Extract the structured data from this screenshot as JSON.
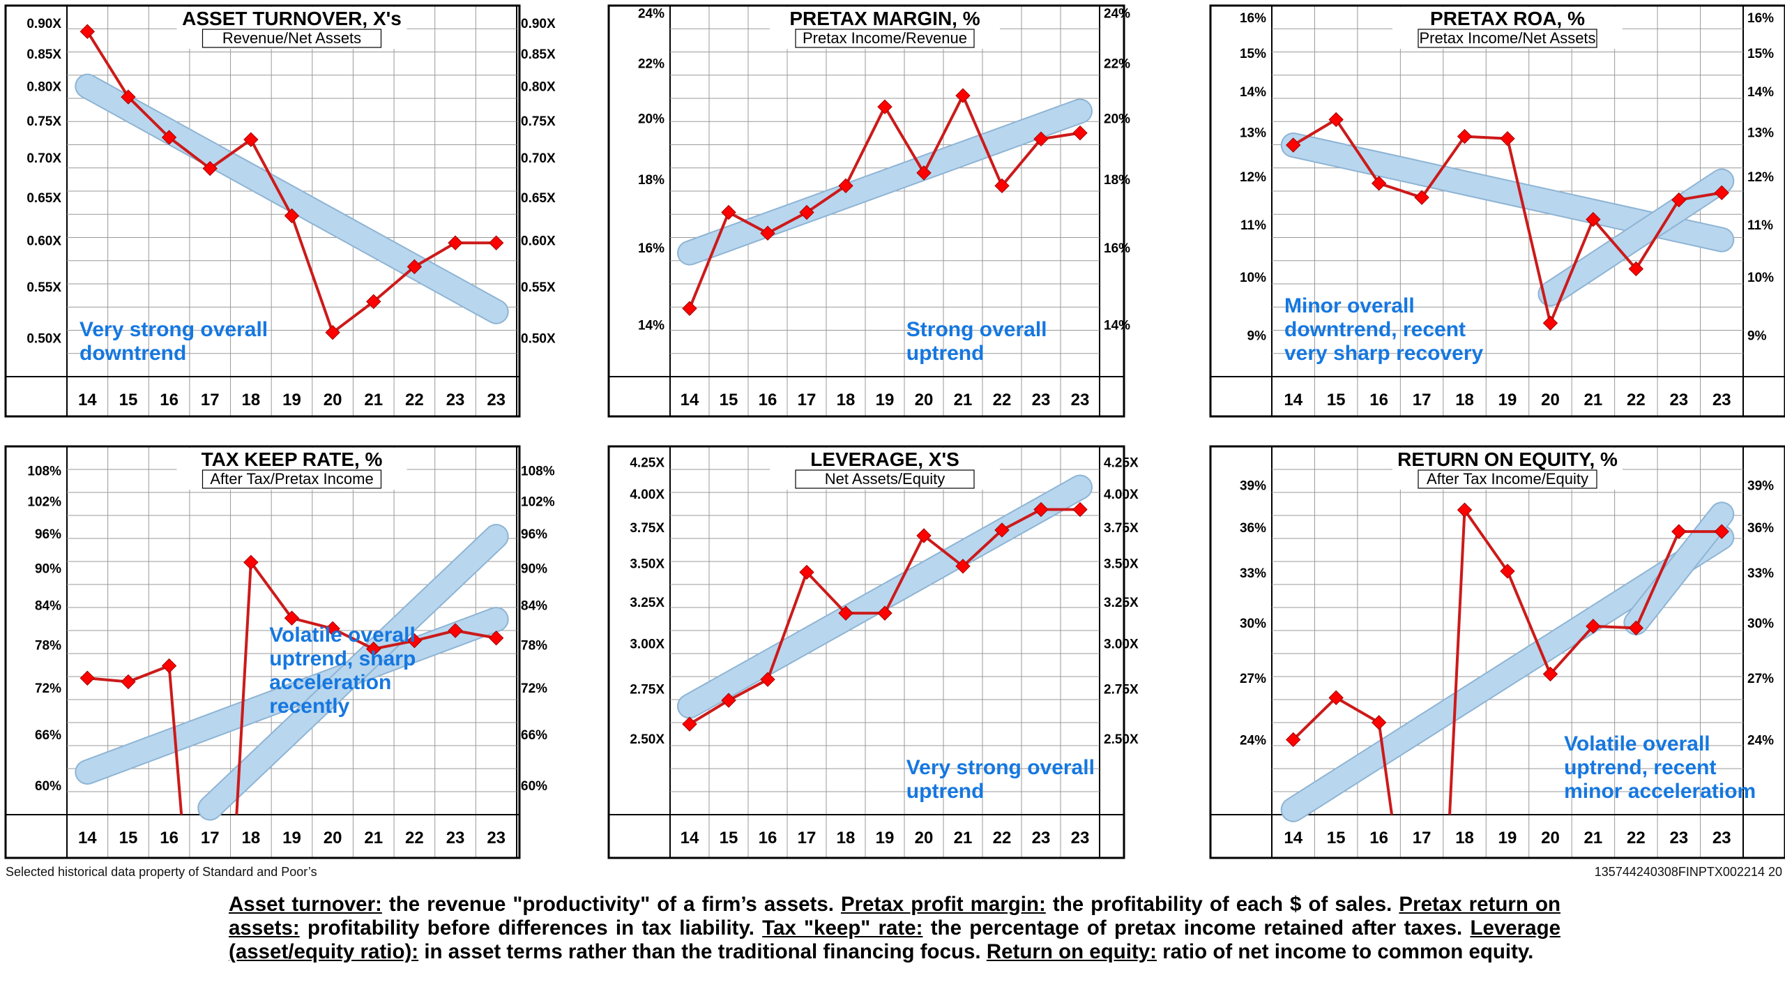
{
  "colors": {
    "trend_band": "#b8d6ee",
    "trend_inner": "#d6ecc0",
    "series": "#cc1a1a",
    "marker": "#ff0000",
    "annotation": "#1577e0",
    "grid": "#999999",
    "frame": "#000000"
  },
  "charts": [
    {
      "id": "asset-turnover",
      "title": "ASSET TURNOVER, X's",
      "subtitle": "Revenue/Net Assets",
      "annotation": [
        "Very strong overall",
        "downtrend"
      ],
      "annotation_pos": "bottom-left",
      "chart_data": {
        "type": "line",
        "scale": "log",
        "ylim": [
          0.465,
          0.93
        ],
        "yticks": [
          0.5,
          0.55,
          0.6,
          0.65,
          0.7,
          0.75,
          0.8,
          0.85,
          0.9
        ],
        "ytick_labels": [
          "0.50X",
          "0.55X",
          "0.60X",
          "0.65X",
          "0.70X",
          "0.75X",
          "0.80X",
          "0.85X",
          "0.90X"
        ],
        "categories": [
          "14",
          "15",
          "16",
          "17",
          "18",
          "19",
          "20",
          "21",
          "22",
          "23",
          "23"
        ],
        "values": [
          0.886,
          0.784,
          0.727,
          0.686,
          0.724,
          0.628,
          0.505,
          0.535,
          0.571,
          0.597,
          0.597
        ],
        "trends": [
          {
            "from": [
              0,
              0.8
            ],
            "to": [
              10,
              0.525
            ]
          }
        ]
      }
    },
    {
      "id": "pretax-margin",
      "title": "PRETAX MARGIN, %",
      "subtitle": "Pretax Income/Revenue",
      "annotation": [
        "Strong overall",
        "uptrend"
      ],
      "annotation_pos": "bottom-center",
      "chart_data": {
        "type": "line",
        "scale": "log",
        "ylim": [
          12.8,
          24.3
        ],
        "yticks": [
          14,
          16,
          18,
          20,
          22,
          24
        ],
        "ytick_labels": [
          "14%",
          "16%",
          "18%",
          "20%",
          "22%",
          "24%"
        ],
        "categories": [
          "14",
          "15",
          "16",
          "17",
          "18",
          "19",
          "20",
          "21",
          "22",
          "23",
          "23"
        ],
        "values": [
          14.4,
          17.0,
          16.4,
          17.0,
          17.8,
          20.4,
          18.2,
          20.8,
          17.8,
          19.3,
          19.5
        ],
        "trends": [
          {
            "from": [
              0,
              15.85
            ],
            "to": [
              10,
              20.25
            ]
          }
        ]
      }
    },
    {
      "id": "pretax-roa",
      "title": "PRETAX ROA, %",
      "subtitle": "Pretax Income/Net Assets",
      "annotation": [
        "Minor overall",
        "downtrend, recent",
        "very sharp recovery"
      ],
      "annotation_pos": "bottom-left",
      "chart_data": {
        "type": "line",
        "scale": "log",
        "ylim": [
          8.35,
          16.35
        ],
        "yticks": [
          9,
          10,
          11,
          12,
          13,
          14,
          15,
          16
        ],
        "ytick_labels": [
          "9%",
          "10%",
          "11%",
          "12%",
          "13%",
          "14%",
          "15%",
          "16%"
        ],
        "categories": [
          "14",
          "15",
          "16",
          "17",
          "18",
          "19",
          "20",
          "21",
          "22",
          "23",
          "23"
        ],
        "values": [
          12.7,
          13.3,
          11.85,
          11.55,
          12.9,
          12.85,
          9.2,
          11.1,
          10.15,
          11.5,
          11.65
        ],
        "trends": [
          {
            "from": [
              0,
              12.7
            ],
            "to": [
              10,
              10.7
            ]
          },
          {
            "from": [
              6,
              9.7
            ],
            "to": [
              10,
              11.9
            ]
          }
        ]
      }
    },
    {
      "id": "tax-keep-rate",
      "title": "TAX KEEP RATE, %",
      "subtitle": "After Tax/Pretax Income",
      "annotation": [
        "Volatile overall",
        "uptrend, sharp",
        "acceleration",
        "recently"
      ],
      "annotation_pos": "center",
      "chart_data": {
        "type": "line",
        "scale": "log",
        "ylim": [
          56.8,
          113
        ],
        "yticks": [
          60,
          66,
          72,
          78,
          84,
          90,
          96,
          102,
          108
        ],
        "ytick_labels": [
          "60%",
          "66%",
          "72%",
          "78%",
          "84%",
          "90%",
          "96%",
          "102%",
          "108%"
        ],
        "categories": [
          "14",
          "15",
          "16",
          "17",
          "18",
          "19",
          "20",
          "21",
          "22",
          "23",
          "23"
        ],
        "values": [
          73.3,
          72.8,
          75.0,
          null,
          91.0,
          82.0,
          80.4,
          77.4,
          78.6,
          80.1,
          79.0
        ],
        "offscale_drops": [
          2,
          4
        ],
        "trends": [
          {
            "from": [
              0,
              61.5
            ],
            "to": [
              10,
              81.8
            ]
          },
          {
            "from": [
              3,
              57.5
            ],
            "to": [
              10,
              95.5
            ]
          }
        ]
      }
    },
    {
      "id": "leverage",
      "title": "LEVERAGE, X'S",
      "subtitle": "Net Assets/Equity",
      "annotation": [
        "Very strong overall",
        "uptrend"
      ],
      "annotation_pos": "bottom-center",
      "chart_data": {
        "type": "line",
        "scale": "log",
        "ylim": [
          2.16,
          4.38
        ],
        "yticks": [
          2.5,
          2.75,
          3.0,
          3.25,
          3.5,
          3.75,
          4.0,
          4.25
        ],
        "ytick_labels": [
          "2.50X",
          "2.75X",
          "3.00X",
          "3.25X",
          "3.50X",
          "3.75X",
          "4.00X",
          "4.25X"
        ],
        "categories": [
          "14",
          "15",
          "16",
          "17",
          "18",
          "19",
          "20",
          "21",
          "22",
          "23",
          "23"
        ],
        "values": [
          2.57,
          2.69,
          2.8,
          3.44,
          3.18,
          3.18,
          3.69,
          3.48,
          3.73,
          3.88,
          3.88
        ],
        "trends": [
          {
            "from": [
              0,
              2.66
            ],
            "to": [
              10,
              4.05
            ]
          }
        ]
      }
    },
    {
      "id": "return-on-equity",
      "title": "RETURN ON EQUITY, %",
      "subtitle": "After Tax Income/Equity",
      "annotation": [
        "Volatile overall",
        "uptrend, recent",
        "minor acceleratiom"
      ],
      "annotation_pos": "bottom-right",
      "chart_data": {
        "type": "line",
        "scale": "log",
        "ylim": [
          20.8,
          42.0
        ],
        "yticks": [
          24,
          27,
          30,
          33,
          36,
          39
        ],
        "ytick_labels": [
          "24%",
          "27%",
          "30%",
          "33%",
          "36%",
          "39%"
        ],
        "categories": [
          "14",
          "15",
          "16",
          "17",
          "18",
          "19",
          "20",
          "21",
          "22",
          "23",
          "23"
        ],
        "values": [
          24.0,
          26.0,
          24.8,
          null,
          37.2,
          33.1,
          27.2,
          29.8,
          29.7,
          35.7,
          35.7
        ],
        "offscale_drops": [
          2,
          4
        ],
        "trends": [
          {
            "from": [
              0,
              21.0
            ],
            "to": [
              10,
              35.3
            ]
          },
          {
            "from": [
              8,
              30.0
            ],
            "to": [
              10,
              36.9
            ]
          }
        ]
      }
    }
  ],
  "footer": {
    "source": "Selected historical data property of Standard and Poor’s",
    "code": "135744240308FINPTX002214  20"
  },
  "definitions": {
    "t1": "Asset turnover:",
    "d1": " the revenue \"productivity\" of a firm’s assets. ",
    "t2": "Pretax profit margin:",
    "d2": " the profitability of each $ of sales. ",
    "t3": "Pretax return on assets:",
    "d3": " profitability before differences in tax liability. ",
    "t4": "Tax \"keep\" rate:",
    "d4": " the percentage of pretax income retained after taxes. ",
    "t5": "Leverage (asset/equity ratio):",
    "d5": " in asset terms rather than the traditional financing focus. ",
    "t6": "Return on equity:",
    "d6": " ratio of net income to common equity."
  }
}
